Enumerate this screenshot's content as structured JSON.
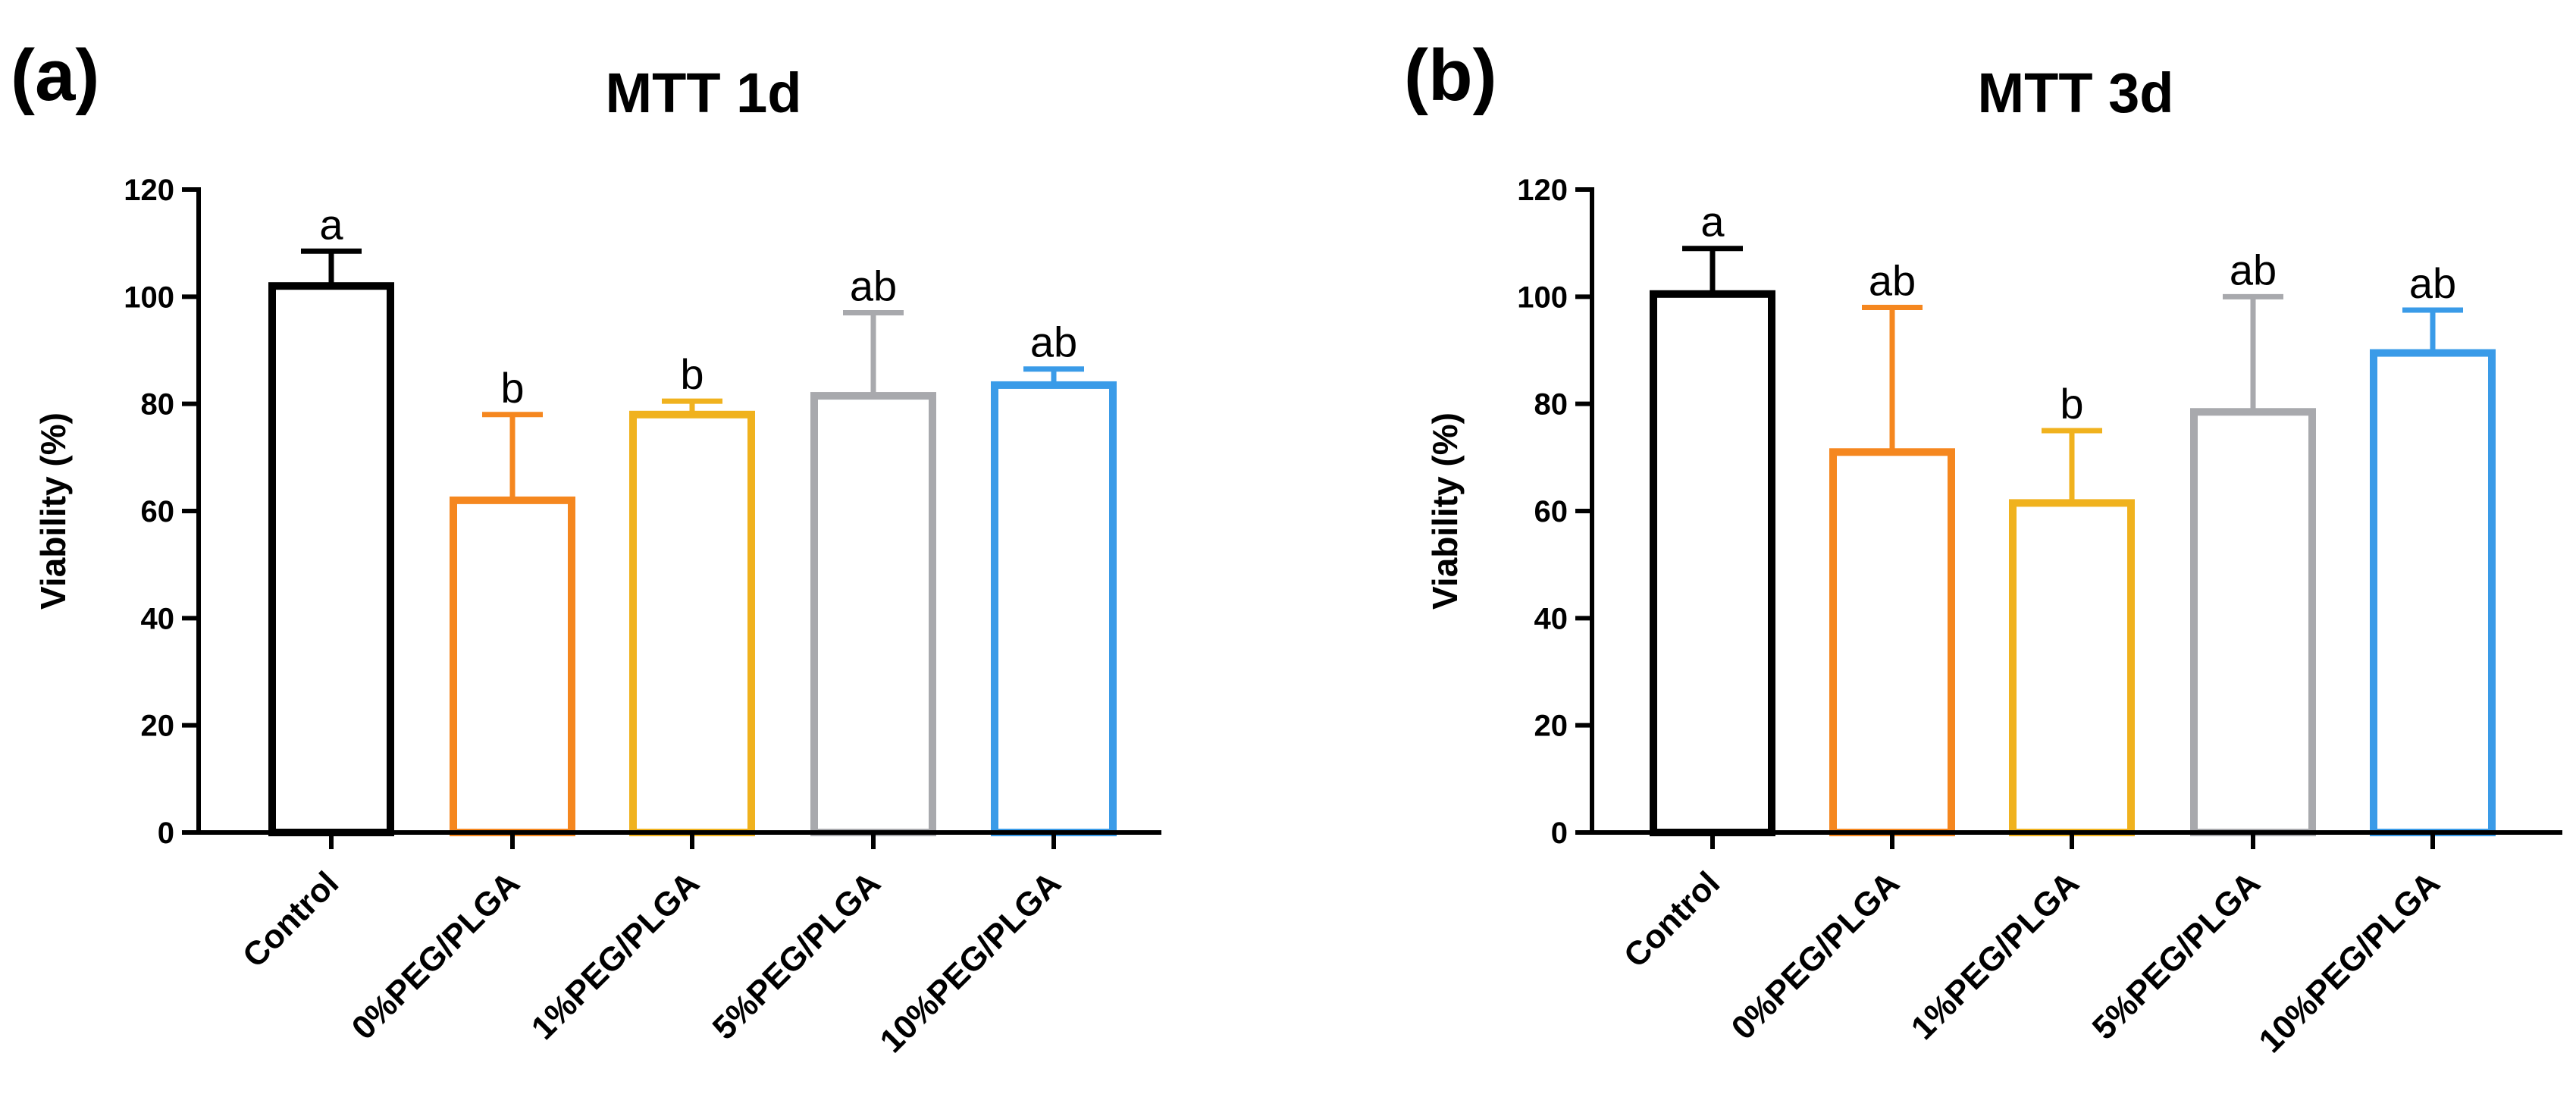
{
  "chart_data": [
    {
      "type": "bar",
      "panel_label": "(a)",
      "title": "MTT 1d",
      "xlabel": "",
      "ylabel": "Viability (%)",
      "ylim": [
        0,
        120
      ],
      "yticks": [
        "0",
        "20",
        "40",
        "60",
        "80",
        "100",
        "120"
      ],
      "categories": [
        "Control",
        "0%PEG/PLGA",
        "1%PEG/PLGA",
        "5%PEG/PLGA",
        "10%PEG/PLGA"
      ],
      "values": [
        102,
        62,
        78,
        81.5,
        83.5
      ],
      "errors": [
        6.5,
        16,
        2.5,
        15.5,
        3
      ],
      "significance": [
        "a",
        "b",
        "b",
        "ab",
        "ab"
      ],
      "colors": [
        "#000000",
        "#f5871f",
        "#f0b21e",
        "#a8a9ad",
        "#3a9be8"
      ],
      "grid": false
    },
    {
      "type": "bar",
      "panel_label": "(b)",
      "title": "MTT 3d",
      "xlabel": "",
      "ylabel": "Viability (%)",
      "ylim": [
        0,
        120
      ],
      "yticks": [
        "0",
        "20",
        "40",
        "60",
        "80",
        "100",
        "120"
      ],
      "categories": [
        "Control",
        "0%PEG/PLGA",
        "1%PEG/PLGA",
        "5%PEG/PLGA",
        "10%PEG/PLGA"
      ],
      "values": [
        100.5,
        71,
        61.5,
        78.5,
        89.5
      ],
      "errors": [
        8.5,
        27,
        13.5,
        21.5,
        8
      ],
      "significance": [
        "a",
        "ab",
        "b",
        "ab",
        "ab"
      ],
      "colors": [
        "#000000",
        "#f5871f",
        "#f0b21e",
        "#a8a9ad",
        "#3a9be8"
      ],
      "grid": false
    }
  ]
}
